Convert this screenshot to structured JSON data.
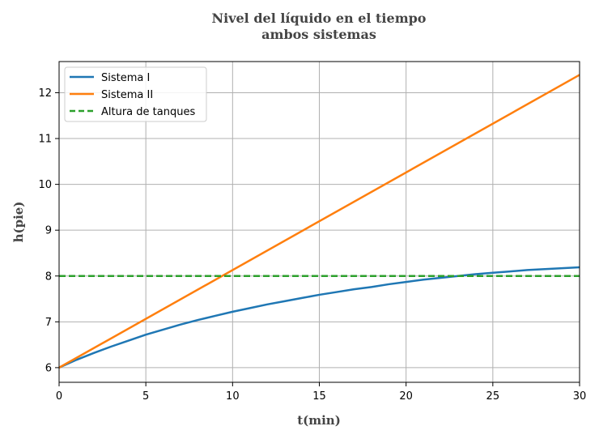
{
  "chart_data": {
    "type": "line",
    "title": [
      "Nivel del líquido en el tiempo",
      "ambos sistemas"
    ],
    "xlabel": "t(min)",
    "ylabel": "h(pie)",
    "xlim": [
      0,
      30
    ],
    "ylim": [
      5.68,
      12.68
    ],
    "xticks": [
      0,
      5,
      10,
      15,
      20,
      25,
      30
    ],
    "yticks": [
      6,
      7,
      8,
      9,
      10,
      11,
      12
    ],
    "grid": true,
    "legend_position": "upper-left",
    "series": [
      {
        "name": "Sistema I",
        "color": "#1f77b4",
        "style": "solid",
        "x": [
          0,
          1,
          2,
          3,
          4,
          5,
          6,
          7,
          8,
          9,
          10,
          11,
          12,
          13,
          14,
          15,
          16,
          17,
          18,
          19,
          20,
          21,
          22,
          23,
          24,
          25,
          26,
          27,
          28,
          29,
          30
        ],
        "y": [
          6.0,
          6.17,
          6.32,
          6.46,
          6.59,
          6.72,
          6.83,
          6.94,
          7.04,
          7.13,
          7.22,
          7.3,
          7.38,
          7.45,
          7.52,
          7.59,
          7.65,
          7.71,
          7.76,
          7.82,
          7.87,
          7.92,
          7.96,
          8.0,
          8.04,
          8.07,
          8.1,
          8.13,
          8.15,
          8.17,
          8.19
        ]
      },
      {
        "name": "Sistema II",
        "color": "#ff7f0e",
        "style": "solid",
        "x": [
          0,
          30
        ],
        "y": [
          6.0,
          12.39
        ]
      },
      {
        "name": "Altura de tanques",
        "color": "#2ca02c",
        "style": "dashed",
        "x": [
          0,
          30
        ],
        "y": [
          8.0,
          8.0
        ]
      }
    ]
  }
}
